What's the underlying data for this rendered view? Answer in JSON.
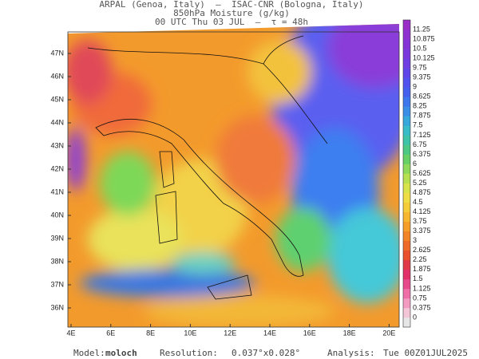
{
  "header": {
    "line1": "ARPAL (Genoa, Italy)  –  ISAC-CNR (Bologna, Italy)",
    "line2": "850hPa Moisture (g/kg)",
    "line3": "00 UTC Thu 03 JUL  –  τ = 48h"
  },
  "map": {
    "lon_labels": [
      "4E",
      "6E",
      "8E",
      "10E",
      "12E",
      "14E",
      "16E",
      "18E",
      "20E"
    ],
    "lat_labels": [
      "47N",
      "46N",
      "45N",
      "44N",
      "43N",
      "42N",
      "41N",
      "40N",
      "39N",
      "38N",
      "37N",
      "36N"
    ]
  },
  "colorbar": {
    "labels": [
      "11.25",
      "10.875",
      "10.5",
      "10.125",
      "9.75",
      "9.375",
      "9",
      "8.625",
      "8.25",
      "7.875",
      "7.5",
      "7.125",
      "6.75",
      "6.375",
      "6",
      "5.625",
      "5.25",
      "4.875",
      "4.5",
      "4.125",
      "3.75",
      "3.375",
      "3",
      "2.625",
      "2.25",
      "1.875",
      "1.5",
      "1.125",
      "0.75",
      "0.375",
      "0"
    ]
  },
  "footer": {
    "model_label": "Model:",
    "model": "moloch",
    "resolution_label": "Resolution:",
    "resolution": "0.037°x0.028°",
    "analysis_label": "Analysis:",
    "analysis": "Tue 00Z01JUL2025"
  }
}
